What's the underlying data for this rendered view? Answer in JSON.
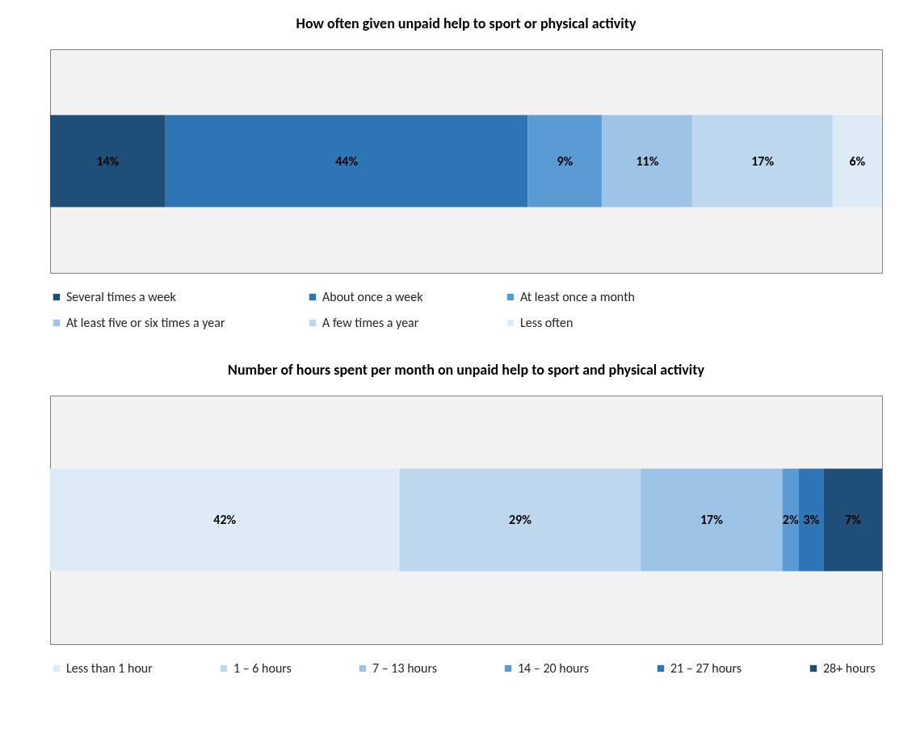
{
  "chart_data": [
    {
      "type": "bar",
      "title": "How often given unpaid help to sport or physical activity",
      "orientation": "horizontal",
      "stacked": true,
      "categories": [
        null
      ],
      "tick_labels": false,
      "grid": false,
      "legend": "bottom",
      "series": [
        {
          "name": "Several times a week",
          "color": "#1f4e79",
          "values": [
            14
          ],
          "value_labels": [
            "14%"
          ]
        },
        {
          "name": "About once a week",
          "color": "#2e75b6",
          "values": [
            44
          ],
          "value_labels": [
            "44%"
          ]
        },
        {
          "name": "At least once a month",
          "color": "#5b9bd5",
          "values": [
            9
          ],
          "value_labels": [
            "9%"
          ]
        },
        {
          "name": "At least five or six times a year",
          "color": "#9dc3e6",
          "values": [
            11
          ],
          "value_labels": [
            "11%"
          ]
        },
        {
          "name": "A few times a year",
          "color": "#bdd7ee",
          "values": [
            17
          ],
          "value_labels": [
            "17%"
          ]
        },
        {
          "name": "Less often",
          "color": "#deebf7",
          "values": [
            6
          ],
          "value_labels": [
            "6%"
          ]
        }
      ]
    },
    {
      "type": "bar",
      "title": "Number of hours spent per month on unpaid help to sport and physical activity",
      "orientation": "horizontal",
      "stacked": true,
      "categories": [
        null
      ],
      "tick_labels": false,
      "grid": false,
      "legend": "bottom",
      "series": [
        {
          "name": "Less than 1 hour",
          "color": "#deebf7",
          "values": [
            42
          ],
          "value_labels": [
            "42%"
          ]
        },
        {
          "name": "1 – 6 hours",
          "color": "#bdd7ee",
          "values": [
            29
          ],
          "value_labels": [
            "29%"
          ]
        },
        {
          "name": "7 – 13 hours",
          "color": "#9dc3e6",
          "values": [
            17
          ],
          "value_labels": [
            "17%"
          ]
        },
        {
          "name": "14 – 20 hours",
          "color": "#5b9bd5",
          "values": [
            2
          ],
          "value_labels": [
            "2%"
          ]
        },
        {
          "name": "21 – 27 hours",
          "color": "#2e75b6",
          "values": [
            3
          ],
          "value_labels": [
            "3%"
          ]
        },
        {
          "name": "28+ hours",
          "color": "#1f4e79",
          "values": [
            7
          ],
          "value_labels": [
            "7%"
          ]
        }
      ]
    }
  ]
}
